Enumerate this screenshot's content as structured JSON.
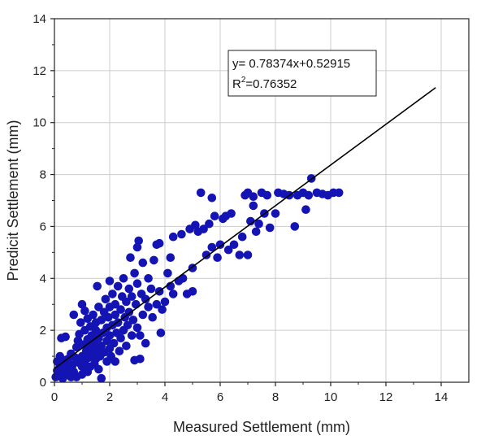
{
  "chart_data": {
    "type": "scatter",
    "title": "",
    "xlabel": "Measured Settlement (mm)",
    "ylabel": "Predicit Settlement (mm)",
    "xlim": [
      0,
      15
    ],
    "ylim": [
      0,
      14
    ],
    "xticks": [
      0,
      2,
      4,
      6,
      8,
      10,
      12,
      14
    ],
    "yticks": [
      0,
      2,
      4,
      6,
      8,
      10,
      12,
      14
    ],
    "grid": true,
    "marker_color": "#1414b4",
    "line_color": "#000000",
    "fit_line": {
      "slope": 0.78374,
      "intercept": 0.52915,
      "x_range": [
        0,
        13.8
      ]
    },
    "annotation": {
      "equation": "y= 0.78374x+0.52915",
      "r2_prefix": "R",
      "r2_sup": "2",
      "r2_value": "=0.76352"
    },
    "points": [
      [
        0.05,
        0.2
      ],
      [
        0.1,
        0.45
      ],
      [
        0.1,
        0.8
      ],
      [
        0.15,
        0.3
      ],
      [
        0.2,
        0.6
      ],
      [
        0.2,
        1.0
      ],
      [
        0.25,
        1.7
      ],
      [
        0.3,
        0.15
      ],
      [
        0.3,
        0.4
      ],
      [
        0.35,
        0.85
      ],
      [
        0.35,
        0.25
      ],
      [
        0.4,
        1.75
      ],
      [
        0.4,
        0.5
      ],
      [
        0.45,
        0.7
      ],
      [
        0.5,
        0.35
      ],
      [
        0.5,
        0.9
      ],
      [
        0.55,
        0.55
      ],
      [
        0.6,
        1.1
      ],
      [
        0.6,
        0.2
      ],
      [
        0.65,
        0.65
      ],
      [
        0.7,
        0.4
      ],
      [
        0.7,
        2.6
      ],
      [
        0.75,
        0.95
      ],
      [
        0.8,
        1.35
      ],
      [
        0.8,
        0.2
      ],
      [
        0.85,
        1.6
      ],
      [
        0.9,
        0.75
      ],
      [
        0.9,
        1.85
      ],
      [
        0.95,
        2.3
      ],
      [
        1.0,
        0.3
      ],
      [
        1.0,
        0.6
      ],
      [
        1.0,
        1.0
      ],
      [
        1.0,
        3.0
      ],
      [
        1.05,
        1.45
      ],
      [
        1.1,
        0.8
      ],
      [
        1.1,
        2.0
      ],
      [
        1.1,
        2.75
      ],
      [
        1.15,
        1.2
      ],
      [
        1.2,
        0.4
      ],
      [
        1.2,
        1.65
      ],
      [
        1.2,
        2.45
      ],
      [
        1.25,
        0.95
      ],
      [
        1.3,
        1.35
      ],
      [
        1.3,
        2.15
      ],
      [
        1.3,
        0.6
      ],
      [
        1.35,
        1.8
      ],
      [
        1.4,
        1.1
      ],
      [
        1.4,
        2.6
      ],
      [
        1.45,
        0.7
      ],
      [
        1.45,
        1.5
      ],
      [
        1.5,
        2.0
      ],
      [
        1.5,
        2.3
      ],
      [
        1.5,
        0.9
      ],
      [
        1.55,
        1.25
      ],
      [
        1.55,
        3.7
      ],
      [
        1.6,
        1.7
      ],
      [
        1.6,
        2.9
      ],
      [
        1.6,
        0.5
      ],
      [
        1.65,
        1.0
      ],
      [
        1.7,
        2.4
      ],
      [
        1.7,
        1.4
      ],
      [
        1.7,
        0.15
      ],
      [
        1.75,
        1.9
      ],
      [
        1.8,
        2.7
      ],
      [
        1.8,
        1.15
      ],
      [
        1.85,
        3.2
      ],
      [
        1.9,
        1.6
      ],
      [
        1.9,
        2.1
      ],
      [
        1.9,
        0.8
      ],
      [
        1.95,
        2.5
      ],
      [
        2.0,
        1.3
      ],
      [
        2.0,
        1.8
      ],
      [
        2.0,
        2.9
      ],
      [
        2.0,
        3.9
      ],
      [
        2.05,
        1.0
      ],
      [
        2.1,
        2.2
      ],
      [
        2.1,
        3.4
      ],
      [
        2.15,
        1.5
      ],
      [
        2.2,
        2.6
      ],
      [
        2.2,
        0.8
      ],
      [
        2.2,
        3.0
      ],
      [
        2.25,
        1.9
      ],
      [
        2.3,
        2.3
      ],
      [
        2.3,
        3.7
      ],
      [
        2.35,
        1.2
      ],
      [
        2.4,
        2.8
      ],
      [
        2.4,
        1.7
      ],
      [
        2.45,
        3.3
      ],
      [
        2.5,
        2.0
      ],
      [
        2.5,
        4.0
      ],
      [
        2.55,
        2.5
      ],
      [
        2.6,
        1.4
      ],
      [
        2.6,
        3.1
      ],
      [
        2.65,
        2.2
      ],
      [
        2.7,
        3.6
      ],
      [
        2.7,
        2.7
      ],
      [
        2.75,
        4.8
      ],
      [
        2.8,
        1.8
      ],
      [
        2.8,
        3.3
      ],
      [
        2.85,
        2.4
      ],
      [
        2.9,
        4.2
      ],
      [
        2.9,
        0.85
      ],
      [
        2.95,
        3.0
      ],
      [
        3.0,
        2.1
      ],
      [
        3.0,
        3.8
      ],
      [
        3.0,
        5.2
      ],
      [
        3.05,
        5.45
      ],
      [
        3.1,
        1.8
      ],
      [
        3.1,
        0.9
      ],
      [
        3.15,
        3.4
      ],
      [
        3.2,
        2.6
      ],
      [
        3.2,
        4.6
      ],
      [
        3.3,
        3.2
      ],
      [
        3.3,
        1.5
      ],
      [
        3.4,
        4.0
      ],
      [
        3.4,
        2.9
      ],
      [
        3.5,
        3.6
      ],
      [
        3.55,
        2.5
      ],
      [
        3.6,
        4.7
      ],
      [
        3.7,
        3.0
      ],
      [
        3.7,
        5.3
      ],
      [
        3.8,
        5.35
      ],
      [
        3.8,
        3.5
      ],
      [
        3.85,
        1.9
      ],
      [
        3.9,
        2.8
      ],
      [
        4.0,
        3.1
      ],
      [
        4.1,
        4.2
      ],
      [
        4.2,
        3.7
      ],
      [
        4.2,
        4.8
      ],
      [
        4.3,
        5.6
      ],
      [
        4.3,
        3.4
      ],
      [
        4.5,
        3.9
      ],
      [
        4.6,
        5.7
      ],
      [
        4.65,
        4.0
      ],
      [
        4.8,
        3.4
      ],
      [
        4.9,
        5.9
      ],
      [
        5.0,
        4.4
      ],
      [
        5.0,
        3.5
      ],
      [
        5.1,
        6.05
      ],
      [
        5.2,
        5.8
      ],
      [
        5.3,
        7.3
      ],
      [
        5.4,
        5.9
      ],
      [
        5.5,
        4.9
      ],
      [
        5.6,
        6.1
      ],
      [
        5.7,
        7.1
      ],
      [
        5.7,
        5.2
      ],
      [
        5.8,
        6.4
      ],
      [
        5.9,
        4.8
      ],
      [
        6.0,
        5.3
      ],
      [
        6.1,
        6.3
      ],
      [
        6.2,
        6.4
      ],
      [
        6.3,
        5.1
      ],
      [
        6.4,
        6.5
      ],
      [
        6.5,
        5.3
      ],
      [
        6.7,
        4.9
      ],
      [
        6.8,
        5.6
      ],
      [
        6.9,
        7.2
      ],
      [
        7.0,
        4.9
      ],
      [
        7.0,
        7.3
      ],
      [
        7.1,
        6.2
      ],
      [
        7.2,
        7.15
      ],
      [
        7.2,
        6.8
      ],
      [
        7.3,
        5.8
      ],
      [
        7.4,
        6.1
      ],
      [
        7.5,
        7.3
      ],
      [
        7.6,
        6.5
      ],
      [
        7.7,
        7.2
      ],
      [
        7.8,
        5.95
      ],
      [
        8.0,
        6.5
      ],
      [
        8.1,
        7.3
      ],
      [
        8.3,
        7.25
      ],
      [
        8.5,
        7.2
      ],
      [
        8.7,
        6.0
      ],
      [
        8.8,
        7.2
      ],
      [
        9.0,
        7.3
      ],
      [
        9.1,
        6.65
      ],
      [
        9.2,
        7.2
      ],
      [
        9.3,
        7.85
      ],
      [
        9.5,
        7.3
      ],
      [
        9.7,
        7.25
      ],
      [
        9.9,
        7.2
      ],
      [
        10.1,
        7.3
      ],
      [
        10.3,
        7.3
      ]
    ]
  }
}
